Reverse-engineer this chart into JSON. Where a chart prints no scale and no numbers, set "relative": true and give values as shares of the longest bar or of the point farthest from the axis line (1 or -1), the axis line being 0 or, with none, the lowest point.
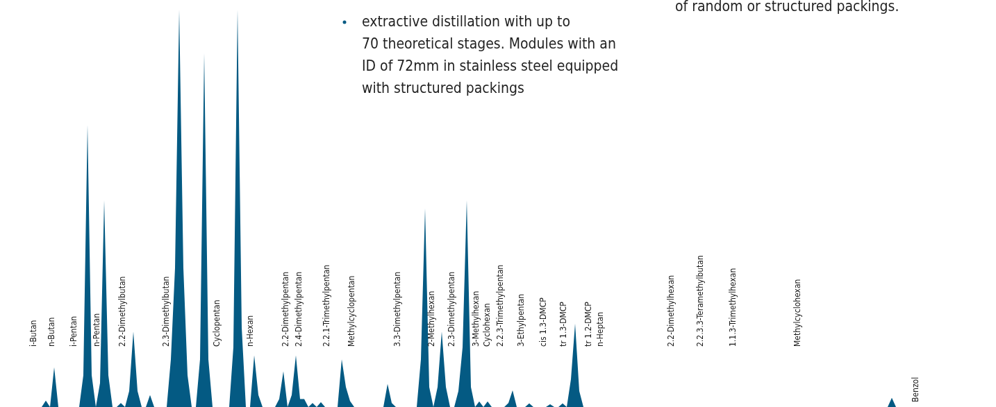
{
  "chart_data": {
    "type": "area",
    "relative": true,
    "categories": [
      null,
      null,
      null,
      null,
      null,
      null,
      null,
      null,
      null,
      null,
      null,
      null,
      null,
      null,
      null,
      null,
      null,
      null,
      null,
      null,
      null,
      null,
      null,
      null,
      null,
      null,
      null,
      null,
      null,
      null,
      null,
      null,
      null,
      null,
      null,
      null,
      null,
      null,
      null,
      null,
      null,
      null,
      null,
      null,
      null,
      null,
      null,
      null,
      null,
      null,
      null,
      null,
      null,
      null,
      null,
      null,
      null,
      null,
      null,
      null,
      null,
      null,
      null,
      null,
      null,
      null,
      null,
      null,
      null,
      null,
      null,
      null,
      null,
      null,
      null,
      null,
      null,
      null,
      null,
      null,
      null,
      null,
      null,
      null,
      null,
      null,
      null,
      null,
      null,
      null,
      null,
      null,
      null,
      null,
      null,
      null,
      null,
      null,
      null,
      null,
      null,
      null,
      null,
      null,
      null,
      null,
      null,
      null,
      null,
      null,
      null,
      null,
      null,
      null,
      null,
      null,
      null,
      null,
      null,
      null,
      null,
      null,
      null,
      null,
      null,
      null,
      null,
      null,
      null,
      null,
      null,
      null,
      null,
      null,
      null,
      null,
      null,
      null,
      null,
      null,
      null,
      null,
      null,
      null,
      null,
      null,
      null,
      null,
      null,
      null,
      null,
      null,
      null,
      null,
      null,
      null,
      null,
      null,
      null,
      null,
      null,
      null,
      null,
      null,
      null,
      null,
      null,
      null,
      null,
      null,
      null,
      null,
      null,
      null,
      null,
      null,
      null,
      null,
      null,
      null,
      null,
      null,
      null,
      null,
      null,
      null,
      null,
      null,
      null,
      null,
      null,
      null,
      null,
      null,
      null,
      null,
      null,
      null,
      null,
      null,
      null,
      null,
      null,
      null,
      null,
      null,
      null,
      null,
      null,
      null,
      null,
      null,
      null,
      null,
      null,
      null,
      null,
      null,
      null,
      null,
      null,
      null,
      null,
      null,
      null,
      null,
      null,
      null,
      null,
      null,
      null,
      null,
      null,
      null,
      null,
      null,
      null,
      null,
      null,
      null
    ],
    "series": [
      {
        "color": "#045a83",
        "values": [
          0,
          0,
          0,
          0,
          0,
          0,
          0,
          0,
          0,
          0,
          0,
          0.016,
          0,
          0.1,
          0,
          0,
          0,
          0,
          0,
          0,
          0.08,
          0.71,
          0.08,
          0,
          0.06,
          0.52,
          0.08,
          0,
          0,
          0.01,
          0,
          0.04,
          0.19,
          0.04,
          0,
          0,
          0.03,
          0,
          0,
          0,
          0,
          0.12,
          0.35,
          1,
          0.35,
          0.08,
          0,
          0,
          0.12,
          0.89,
          0.12,
          0,
          0,
          0,
          0,
          0,
          0.15,
          1,
          0.2,
          0,
          0,
          0.13,
          0.03,
          0,
          0,
          0,
          0,
          0.02,
          0.09,
          0,
          0.03,
          0.13,
          0.02,
          0.02,
          0,
          0.01,
          0,
          0.012,
          0,
          0,
          0,
          0,
          0.12,
          0.05,
          0.015,
          0,
          0,
          0,
          0,
          0,
          0,
          0,
          0,
          0.058,
          0.01,
          0,
          0,
          0,
          0,
          0,
          0,
          0.12,
          0.5,
          0.05,
          0,
          0.05,
          0.19,
          0.05,
          0,
          0,
          0.04,
          0.15,
          0.52,
          0.05,
          0,
          0.014,
          0,
          0.014,
          0,
          0,
          0,
          0,
          0.01,
          0.042,
          0,
          0,
          0,
          0.009,
          0,
          0,
          0,
          0,
          0.007,
          0,
          0,
          0.009,
          0,
          0.07,
          0.21,
          0.04,
          0,
          0,
          0,
          0,
          0,
          0,
          0,
          0,
          0,
          0,
          0,
          0,
          0,
          0,
          0,
          0,
          0,
          0,
          0,
          0,
          0,
          0,
          0,
          0,
          0,
          0,
          0,
          0,
          0,
          0,
          0,
          0,
          0,
          0,
          0,
          0,
          0,
          0,
          0,
          0,
          0,
          0,
          0,
          0,
          0,
          0,
          0,
          0,
          0,
          0,
          0,
          0,
          0,
          0,
          0,
          0,
          0,
          0,
          0,
          0,
          0,
          0,
          0,
          0,
          0,
          0,
          0,
          0,
          0,
          0,
          0,
          0,
          0,
          0,
          0.023,
          0,
          0,
          0,
          0,
          0,
          0,
          0,
          0,
          0,
          0,
          0,
          0,
          0,
          0,
          0,
          0,
          0,
          0,
          0,
          0,
          0,
          0,
          0,
          0,
          0
        ]
      }
    ],
    "annotations": [
      "extractive distillation with up to\n70 theoretical stages. Modules with an\nID of 72mm in stainless steel equipped\nwith structured packings",
      "of random or structured packings.",
      "i-Butan",
      "n-Butan",
      "i-Pentan",
      "n-Pentan",
      "2.2-Dimethylbutan",
      "2.3-Dimethylbutan",
      "Cyclopentan",
      "n-Hexan",
      "2.2-Dimethylpentan",
      "2.4-Dimethylpentan",
      "2.2.1-Trimethylpentan",
      "Methylcyclopentan",
      "3.3-Dimethylpentan",
      "2-Methylhexan",
      "2.3-Dimethylpentan",
      "3-Methylhexan",
      "Cyclohexan",
      "2.2.3-Trimethylpentan",
      "3-Ethylpentan",
      "cis 1.3-DMCP",
      "tr 1.3-DMCP",
      "tr 1.2-DMCP",
      "n-Heptan",
      "2.2-Dimethylhexan",
      "2.2.3.3-Teramethylbutan",
      "1.1.3-Trimethylhexan",
      "Methylcyclohexan",
      "Benzol"
    ]
  }
}
